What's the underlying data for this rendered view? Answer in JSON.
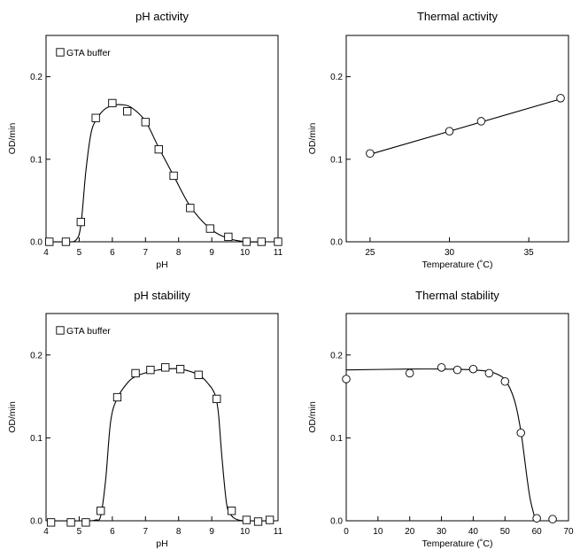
{
  "chart_data": [
    {
      "id": "ph-activity",
      "type": "scatter",
      "title": "pH activity",
      "xlabel": "pH",
      "ylabel": "OD/min",
      "xlim": [
        4,
        11
      ],
      "ylim": [
        0,
        0.25
      ],
      "xticks": [
        4,
        5,
        6,
        7,
        8,
        9,
        10,
        11
      ],
      "xtick_labels": [
        "4",
        "5",
        "6",
        "7",
        "8",
        "9",
        "10",
        "11"
      ],
      "yticks": [
        0,
        0.1,
        0.2
      ],
      "ytick_labels": [
        "0.0",
        "0.1",
        "0.2"
      ],
      "marker": "square",
      "legend": "top-left",
      "series": [
        {
          "name": "GTA buffer",
          "x": [
            4.1,
            4.6,
            5.05,
            5.5,
            6.0,
            6.45,
            7.0,
            7.4,
            7.85,
            8.35,
            8.95,
            9.5,
            10.05,
            10.5,
            11.0
          ],
          "y": [
            0.0,
            0.0,
            0.024,
            0.15,
            0.168,
            0.158,
            0.145,
            0.112,
            0.08,
            0.041,
            0.016,
            0.006,
            0.0,
            0.0,
            0.0
          ]
        }
      ],
      "fit_curve": {
        "x": [
          4.1,
          4.6,
          4.9,
          5.05,
          5.2,
          5.35,
          5.5,
          5.75,
          6.0,
          6.3,
          6.6,
          7.0,
          7.4,
          7.85,
          8.35,
          8.95,
          9.5,
          10.05,
          10.5,
          11.0
        ],
        "y": [
          0.0,
          0.0,
          0.002,
          0.02,
          0.085,
          0.13,
          0.147,
          0.16,
          0.165,
          0.166,
          0.162,
          0.146,
          0.114,
          0.08,
          0.043,
          0.016,
          0.004,
          0.0,
          0.0,
          0.0
        ]
      }
    },
    {
      "id": "thermal-activity",
      "type": "line",
      "title": "Thermal activity",
      "xlabel": "Temperature (˚C)",
      "ylabel": "OD/min",
      "xlim": [
        23.5,
        37.5
      ],
      "ylim": [
        0,
        0.25
      ],
      "xticks": [
        25,
        30,
        35
      ],
      "xtick_labels": [
        "25",
        "30",
        "35"
      ],
      "yticks": [
        0,
        0.1,
        0.2
      ],
      "ytick_labels": [
        "0.0",
        "0.1",
        "0.2"
      ],
      "marker": "circle",
      "series": [
        {
          "x": [
            25,
            30,
            32,
            37
          ],
          "y": [
            0.107,
            0.134,
            0.146,
            0.174
          ]
        }
      ],
      "fit_curve": {
        "x": [
          25,
          37
        ],
        "y": [
          0.106,
          0.173
        ]
      }
    },
    {
      "id": "ph-stability",
      "type": "scatter",
      "title": "pH stability",
      "xlabel": "pH",
      "ylabel": "OD/min",
      "xlim": [
        4,
        11
      ],
      "ylim": [
        0,
        0.25
      ],
      "xticks": [
        4,
        5,
        6,
        7,
        8,
        9,
        10,
        11
      ],
      "xtick_labels": [
        "4",
        "5",
        "6",
        "7",
        "8",
        "9",
        "10",
        "11"
      ],
      "yticks": [
        0,
        0.1,
        0.2
      ],
      "ytick_labels": [
        "0.0",
        "0.1",
        "0.2"
      ],
      "marker": "square",
      "legend": "top-left",
      "series": [
        {
          "name": "GTA buffer",
          "x": [
            4.15,
            4.75,
            5.2,
            5.65,
            6.15,
            6.7,
            7.15,
            7.6,
            8.05,
            8.6,
            9.15,
            9.6,
            10.05,
            10.4,
            10.75
          ],
          "y": [
            -0.002,
            -0.002,
            -0.002,
            0.012,
            0.149,
            0.178,
            0.182,
            0.185,
            0.183,
            0.176,
            0.147,
            0.012,
            0.001,
            -0.001,
            0.001
          ]
        }
      ],
      "fit_curve": {
        "x": [
          4.15,
          5.2,
          5.5,
          5.65,
          5.8,
          5.95,
          6.15,
          6.45,
          6.7,
          7.15,
          7.6,
          8.05,
          8.6,
          8.9,
          9.1,
          9.2,
          9.3,
          9.45,
          9.6,
          9.8,
          10.05,
          10.75
        ],
        "y": [
          0.0,
          0.0,
          0.001,
          0.006,
          0.05,
          0.12,
          0.148,
          0.166,
          0.174,
          0.18,
          0.183,
          0.183,
          0.176,
          0.165,
          0.152,
          0.13,
          0.08,
          0.02,
          0.006,
          0.001,
          0.0,
          0.0
        ]
      }
    },
    {
      "id": "thermal-stability",
      "type": "scatter",
      "title": "Thermal stability",
      "xlabel": "Temperature (˚C)",
      "ylabel": "OD/min",
      "xlim": [
        0,
        70
      ],
      "ylim": [
        0,
        0.25
      ],
      "xticks": [
        0,
        10,
        20,
        30,
        40,
        50,
        60,
        70
      ],
      "xtick_labels": [
        "0",
        "10",
        "20",
        "30",
        "40",
        "50",
        "60",
        "70"
      ],
      "yticks": [
        0,
        0.1,
        0.2
      ],
      "ytick_labels": [
        "0.0",
        "0.1",
        "0.2"
      ],
      "marker": "circle",
      "series": [
        {
          "x": [
            0,
            20,
            30,
            35,
            40,
            45,
            50,
            55,
            60,
            65
          ],
          "y": [
            0.171,
            0.178,
            0.185,
            0.182,
            0.183,
            0.178,
            0.168,
            0.106,
            0.003,
            0.002
          ]
        }
      ],
      "fit_curve": {
        "x": [
          0,
          20,
          30,
          40,
          45,
          48,
          50,
          52,
          53.5,
          55,
          56,
          57,
          58,
          59.5
        ],
        "y": [
          0.182,
          0.183,
          0.183,
          0.182,
          0.18,
          0.176,
          0.17,
          0.156,
          0.138,
          0.108,
          0.08,
          0.05,
          0.025,
          0.002
        ]
      }
    }
  ]
}
